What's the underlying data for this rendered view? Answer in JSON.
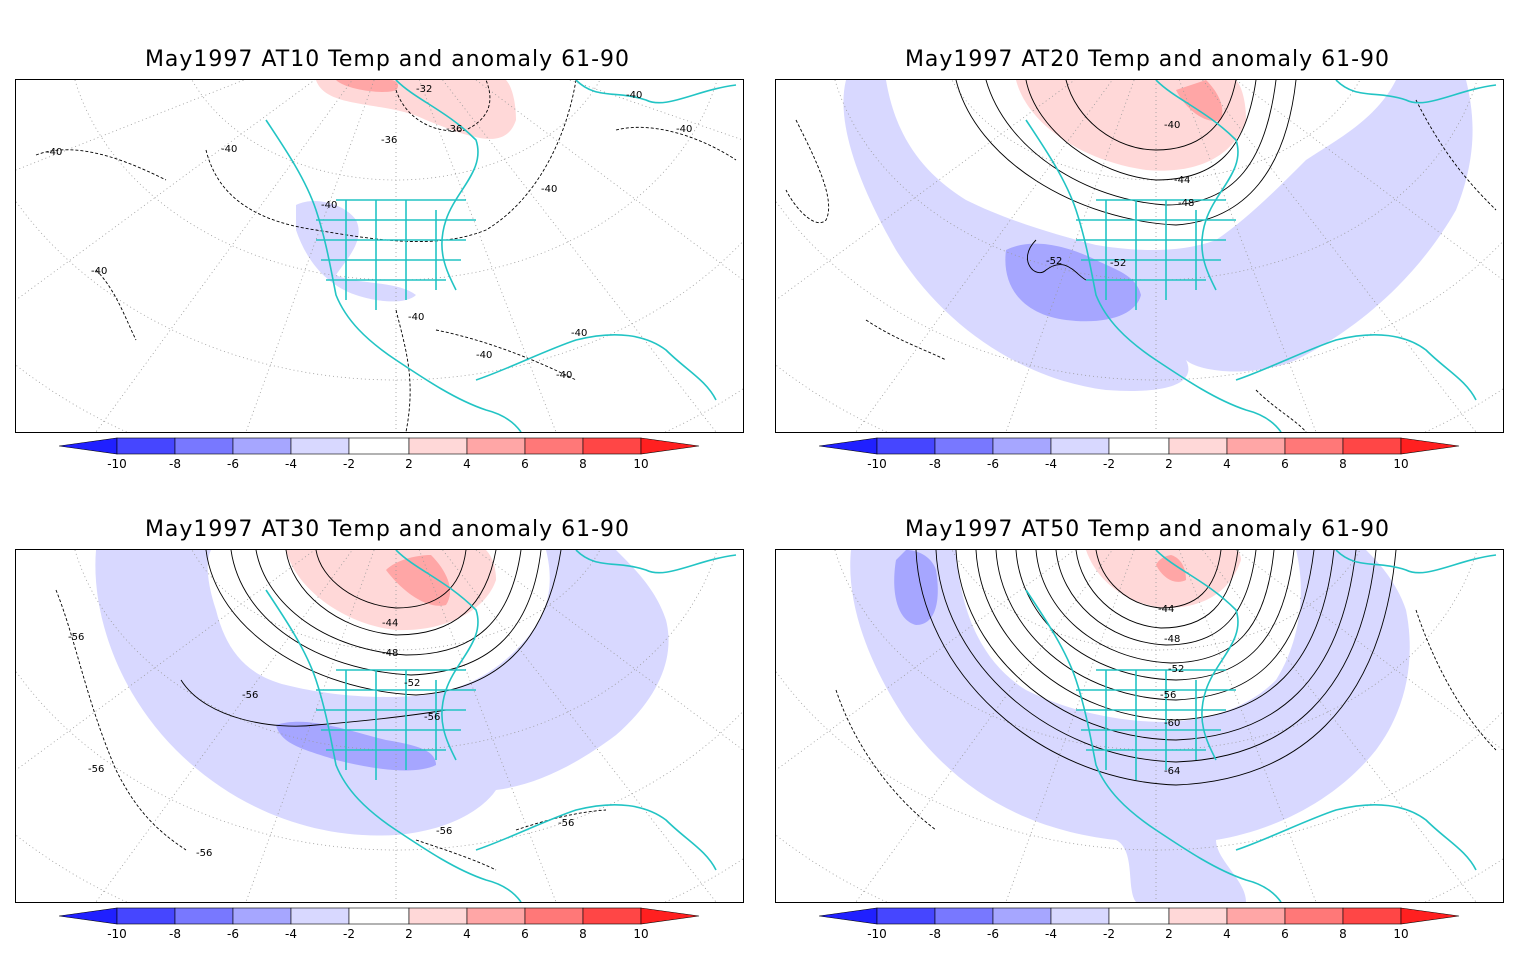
{
  "panels": [
    {
      "title": "May1997 AT10 Temp and anomaly 61-90",
      "contour_labels": [
        "-32",
        "-36",
        "-40",
        "-40",
        "-40",
        "-40",
        "-40",
        "-40",
        "-40",
        "-40",
        "-40"
      ],
      "anomaly": "warm-north-weak-cool-us"
    },
    {
      "title": "May1997 AT20 Temp and anomaly 61-90",
      "contour_labels": [
        "-40",
        "-44",
        "-48",
        "-52",
        "-52"
      ],
      "anomaly": "cool-band"
    },
    {
      "title": "May1997 AT30 Temp and anomaly 61-90",
      "contour_labels": [
        "-44",
        "-48",
        "-52",
        "-56",
        "-56",
        "-56",
        "-56",
        "-56",
        "-56",
        "-56"
      ],
      "anomaly": "cool-band-wide"
    },
    {
      "title": "May1997 AT50 Temp and anomaly 61-90",
      "contour_labels": [
        "-44",
        "-48",
        "-52",
        "-56",
        "-60",
        "-64"
      ],
      "anomaly": "cool-band-widest"
    }
  ],
  "colorbar": {
    "ticks": [
      "-10",
      "-8",
      "-6",
      "-4",
      "-2",
      "2",
      "4",
      "6",
      "8",
      "10"
    ],
    "colors": [
      "#2020ff",
      "#4646ff",
      "#7878ff",
      "#a6a6ff",
      "#d8d8ff",
      "#ffffff",
      "#ffd8d8",
      "#ffa6a6",
      "#ff7878",
      "#ff4646",
      "#ff2020"
    ]
  },
  "colors": {
    "coast": "#22c4c4",
    "cool_light": "#d8d8ff",
    "cool_mid": "#a6a6ff",
    "warm_light": "#ffd8d8",
    "warm_mid": "#ffa6a6"
  }
}
